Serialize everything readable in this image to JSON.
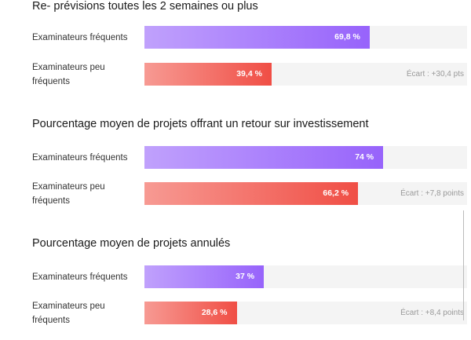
{
  "chart_data": [
    {
      "type": "bar",
      "title": "Re- prévisions toutes les 2 semaines ou plus",
      "categories": [
        "Examinateurs fréquents",
        "Examinateurs peu fréquents"
      ],
      "values": [
        69.8,
        39.4
      ],
      "value_labels": [
        "69,8 %",
        "39,4 %"
      ],
      "gap_label": "Écart : +30,4 pts",
      "xlim": [
        0,
        100
      ],
      "colors": [
        "#9763fb",
        "#f04e45"
      ]
    },
    {
      "type": "bar",
      "title": "Pourcentage moyen de projets offrant un retour sur investissement",
      "categories": [
        "Examinateurs fréquents",
        "Examinateurs peu fréquents"
      ],
      "values": [
        74,
        66.2
      ],
      "value_labels": [
        "74 %",
        "66,2 %"
      ],
      "gap_label": "Écart : +7,8 points",
      "xlim": [
        0,
        100
      ],
      "colors": [
        "#9763fb",
        "#f04e45"
      ]
    },
    {
      "type": "bar",
      "title": "Pourcentage moyen de projets annulés",
      "categories": [
        "Examinateurs fréquents",
        "Examinateurs peu fréquents"
      ],
      "values": [
        37,
        28.6
      ],
      "value_labels": [
        "37 %",
        "28,6 %"
      ],
      "gap_label": "Écart : +8,4 points",
      "xlim": [
        0,
        100
      ],
      "colors": [
        "#9763fb",
        "#f04e45"
      ]
    }
  ]
}
